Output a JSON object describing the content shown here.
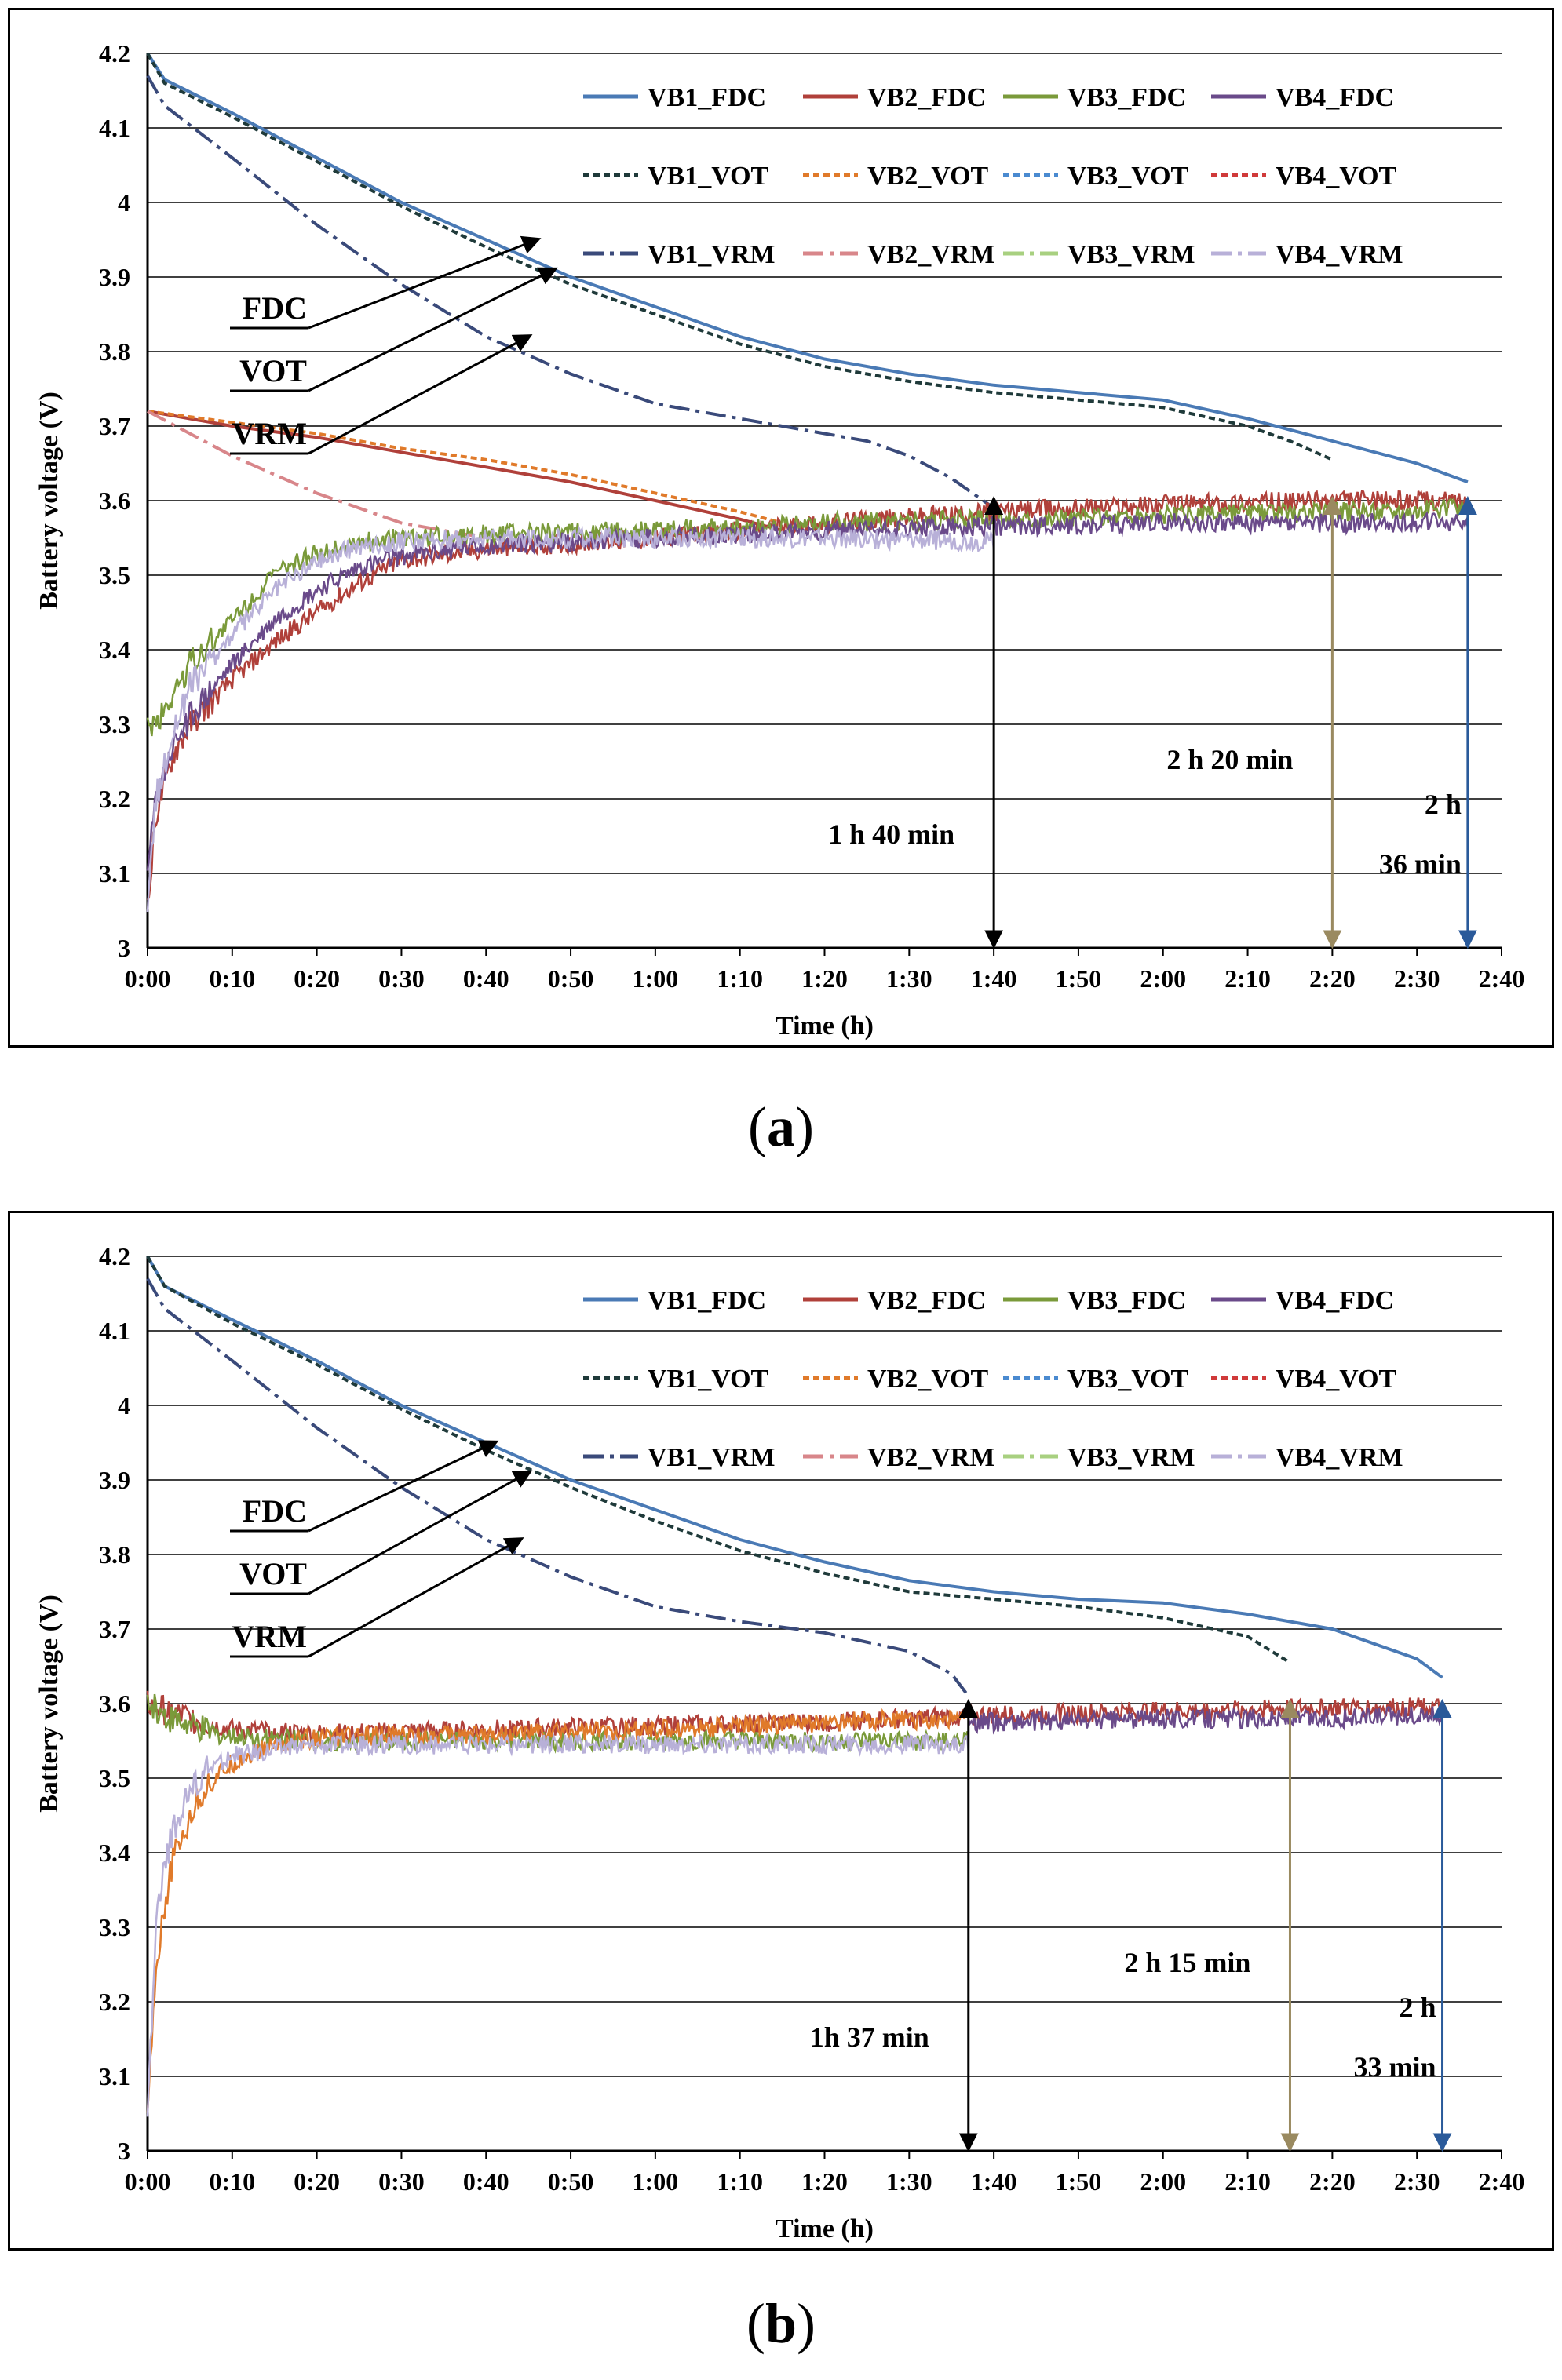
{
  "figure": {
    "captions": [
      "(a)",
      "(b)"
    ],
    "caption_parts": [
      [
        "(",
        "a",
        ")"
      ],
      [
        "(",
        "b",
        ")"
      ]
    ]
  },
  "colors": {
    "VB1_FDC": "#4a7ab5",
    "VB2_FDC": "#b0403a",
    "VB3_FDC": "#7a9a3a",
    "VB4_FDC": "#6a4a8a",
    "VB1_VOT": "#1f3a3a",
    "VB2_VOT": "#e07a2a",
    "VB3_VOT": "#4a8ad0",
    "VB4_VOT": "#d03a3a",
    "VB1_VRM": "#3a4a7a",
    "VB2_VRM": "#d8868a",
    "VB3_VRM": "#a8d080",
    "VB4_VRM": "#b8b0d8",
    "arrow_black": "#000000",
    "arrow_khaki": "#9a8a60",
    "arrow_blue": "#2a5a9a"
  },
  "chart_data": [
    {
      "id": "a",
      "type": "line",
      "title": "",
      "xlabel": "Time (h)",
      "ylabel": "Battery voltage (V)",
      "xlim": [
        0,
        160
      ],
      "ylim": [
        3,
        4.2
      ],
      "grid": true,
      "x_ticks": [
        "0:00",
        "0:10",
        "0:20",
        "0:30",
        "0:40",
        "0:50",
        "1:00",
        "1:10",
        "1:20",
        "1:30",
        "1:40",
        "1:50",
        "2:00",
        "2:10",
        "2:20",
        "2:30",
        "2:40"
      ],
      "y_ticks": [
        "3",
        "3.1",
        "3.2",
        "3.3",
        "3.4",
        "3.5",
        "3.6",
        "3.7",
        "3.8",
        "3.9",
        "4",
        "4.1",
        "4.2"
      ],
      "legend": [
        "VB1_FDC",
        "VB2_FDC",
        "VB3_FDC",
        "VB4_FDC",
        "VB1_VOT",
        "VB2_VOT",
        "VB3_VOT",
        "VB4_VOT",
        "VB1_VRM",
        "VB2_VRM",
        "VB3_VRM",
        "VB4_VRM"
      ],
      "legend_position": "top-right",
      "series": [
        {
          "name": "VB1_FDC",
          "style": "solid",
          "x": [
            0,
            2,
            10,
            20,
            30,
            40,
            50,
            60,
            70,
            80,
            90,
            100,
            110,
            120,
            130,
            140,
            150,
            156
          ],
          "y": [
            4.2,
            4.165,
            4.12,
            4.06,
            4.0,
            3.95,
            3.9,
            3.86,
            3.82,
            3.79,
            3.77,
            3.755,
            3.745,
            3.735,
            3.71,
            3.68,
            3.65,
            3.625
          ]
        },
        {
          "name": "VB1_VOT",
          "style": "dashed",
          "x": [
            0,
            2,
            10,
            20,
            30,
            40,
            50,
            60,
            70,
            80,
            90,
            100,
            110,
            120,
            130,
            135,
            140
          ],
          "y": [
            4.2,
            4.16,
            4.115,
            4.055,
            3.995,
            3.94,
            3.89,
            3.85,
            3.81,
            3.78,
            3.76,
            3.745,
            3.735,
            3.725,
            3.7,
            3.68,
            3.655
          ]
        },
        {
          "name": "VB1_VRM",
          "style": "dashdot",
          "x": [
            0,
            2,
            10,
            20,
            30,
            40,
            50,
            60,
            70,
            80,
            85,
            90,
            95,
            100
          ],
          "y": [
            4.17,
            4.13,
            4.06,
            3.97,
            3.89,
            3.82,
            3.77,
            3.73,
            3.71,
            3.69,
            3.68,
            3.66,
            3.63,
            3.59
          ]
        },
        {
          "name": "VB2_FDC",
          "style": "solid",
          "x": [
            0,
            10,
            20,
            30,
            40,
            50,
            60,
            70,
            75
          ],
          "y": [
            3.72,
            3.7,
            3.685,
            3.665,
            3.645,
            3.625,
            3.6,
            3.575,
            3.56
          ]
        },
        {
          "name": "VB2_VOT",
          "style": "dashed",
          "x": [
            0,
            10,
            20,
            30,
            40,
            50,
            60,
            70,
            75
          ],
          "y": [
            3.72,
            3.705,
            3.69,
            3.67,
            3.655,
            3.635,
            3.61,
            3.585,
            3.57
          ]
        },
        {
          "name": "VB2_VRM",
          "style": "dashdot",
          "x": [
            0,
            10,
            20,
            30,
            40
          ],
          "y": [
            3.72,
            3.66,
            3.61,
            3.57,
            3.55
          ]
        },
        {
          "name": "VB2_FDC rise",
          "legend": "VB2_FDC",
          "style": "noisy",
          "x": [
            0,
            1,
            3,
            5,
            10,
            15,
            20,
            25,
            30,
            40,
            60,
            80,
            100,
            120,
            140,
            156
          ],
          "y": [
            3.05,
            3.18,
            3.26,
            3.3,
            3.36,
            3.41,
            3.45,
            3.49,
            3.52,
            3.535,
            3.55,
            3.57,
            3.585,
            3.595,
            3.6,
            3.6
          ]
        },
        {
          "name": "VB3_FDC rise",
          "legend": "VB3_FDC",
          "style": "noisy",
          "x": [
            0,
            1,
            3,
            5,
            10,
            15,
            20,
            25,
            30,
            40,
            60,
            80,
            100,
            120,
            140,
            156
          ],
          "y": [
            3.3,
            3.3,
            3.34,
            3.38,
            3.44,
            3.5,
            3.53,
            3.545,
            3.55,
            3.555,
            3.56,
            3.57,
            3.575,
            3.58,
            3.585,
            3.59
          ]
        },
        {
          "name": "VB4_FDC rise",
          "legend": "VB4_FDC",
          "style": "noisy",
          "x": [
            0,
            1,
            3,
            5,
            10,
            15,
            20,
            25,
            30,
            40,
            60,
            80,
            100,
            120,
            140,
            156
          ],
          "y": [
            3.1,
            3.2,
            3.27,
            3.31,
            3.38,
            3.44,
            3.48,
            3.51,
            3.525,
            3.54,
            3.55,
            3.56,
            3.565,
            3.57,
            3.57,
            3.57
          ]
        },
        {
          "name": "VB4_VRM rise",
          "legend": "VB4_VRM",
          "style": "noisy",
          "x": [
            0,
            1,
            3,
            5,
            10,
            15,
            20,
            25,
            30,
            40,
            60,
            80,
            100
          ],
          "y": [
            3.05,
            3.2,
            3.29,
            3.35,
            3.42,
            3.48,
            3.52,
            3.54,
            3.545,
            3.55,
            3.55,
            3.55,
            3.545
          ]
        }
      ],
      "annotations": [
        {
          "text": "FDC",
          "arrow_target": [
            46,
            3.95
          ]
        },
        {
          "text": "VOT",
          "arrow_target": [
            48,
            3.91
          ]
        },
        {
          "text": "VRM",
          "arrow_target": [
            45,
            3.82
          ]
        },
        {
          "text": "1 h 40 min",
          "arrow_x": 100,
          "arrow_color": "arrow_black"
        },
        {
          "text": "2 h 20 min",
          "arrow_x": 140,
          "arrow_color": "arrow_khaki"
        },
        {
          "text": "2 h",
          "text2": "36 min",
          "arrow_x": 156,
          "arrow_color": "arrow_blue"
        }
      ]
    },
    {
      "id": "b",
      "type": "line",
      "title": "",
      "xlabel": "Time (h)",
      "ylabel": "Battery voltage (V)",
      "xlim": [
        0,
        160
      ],
      "ylim": [
        3,
        4.2
      ],
      "grid": true,
      "x_ticks": [
        "0:00",
        "0:10",
        "0:20",
        "0:30",
        "0:40",
        "0:50",
        "1:00",
        "1:10",
        "1:20",
        "1:30",
        "1:40",
        "1:50",
        "2:00",
        "2:10",
        "2:20",
        "2:30",
        "2:40"
      ],
      "y_ticks": [
        "3",
        "3.1",
        "3.2",
        "3.3",
        "3.4",
        "3.5",
        "3.6",
        "3.7",
        "3.8",
        "3.9",
        "4",
        "4.1",
        "4.2"
      ],
      "legend": [
        "VB1_FDC",
        "VB2_FDC",
        "VB3_FDC",
        "VB4_FDC",
        "VB1_VOT",
        "VB2_VOT",
        "VB3_VOT",
        "VB4_VOT",
        "VB1_VRM",
        "VB2_VRM",
        "VB3_VRM",
        "VB4_VRM"
      ],
      "legend_position": "top-right",
      "series": [
        {
          "name": "VB1_FDC",
          "style": "solid",
          "x": [
            0,
            2,
            10,
            20,
            30,
            40,
            50,
            60,
            70,
            80,
            90,
            100,
            110,
            120,
            130,
            140,
            150,
            153
          ],
          "y": [
            4.2,
            4.16,
            4.115,
            4.06,
            4.0,
            3.95,
            3.9,
            3.86,
            3.82,
            3.79,
            3.765,
            3.75,
            3.74,
            3.735,
            3.72,
            3.7,
            3.66,
            3.635
          ]
        },
        {
          "name": "VB1_VOT",
          "style": "dashed",
          "x": [
            0,
            2,
            10,
            20,
            30,
            40,
            50,
            60,
            70,
            80,
            90,
            100,
            110,
            120,
            130,
            135
          ],
          "y": [
            4.2,
            4.16,
            4.11,
            4.055,
            3.995,
            3.94,
            3.89,
            3.845,
            3.805,
            3.775,
            3.75,
            3.74,
            3.73,
            3.715,
            3.69,
            3.655
          ]
        },
        {
          "name": "VB1_VRM",
          "style": "dashdot",
          "x": [
            0,
            2,
            10,
            20,
            30,
            40,
            50,
            60,
            70,
            80,
            90,
            95,
            97
          ],
          "y": [
            4.17,
            4.13,
            4.06,
            3.97,
            3.89,
            3.82,
            3.77,
            3.73,
            3.71,
            3.695,
            3.67,
            3.64,
            3.61
          ]
        },
        {
          "name": "VB2_FDC",
          "style": "noisy",
          "x": [
            0,
            2,
            5,
            8,
            10,
            20,
            40,
            60,
            80,
            100,
            120,
            140,
            153
          ],
          "y": [
            3.6,
            3.59,
            3.58,
            3.57,
            3.565,
            3.56,
            3.565,
            3.57,
            3.575,
            3.585,
            3.59,
            3.595,
            3.595
          ]
        },
        {
          "name": "VB3_FDC",
          "style": "noisy",
          "x": [
            0,
            2,
            5,
            8,
            10,
            20,
            40,
            60,
            80,
            97
          ],
          "y": [
            3.6,
            3.585,
            3.57,
            3.56,
            3.555,
            3.55,
            3.55,
            3.55,
            3.55,
            3.55
          ]
        },
        {
          "name": "VB4_FDC",
          "style": "noisy",
          "x": [
            97,
            100,
            120,
            140,
            153
          ],
          "y": [
            3.575,
            3.575,
            3.58,
            3.58,
            3.585
          ]
        },
        {
          "name": "VB2_VOT rise",
          "legend": "VB2_VOT",
          "style": "noisy",
          "x": [
            0,
            1,
            2,
            3,
            5,
            7,
            10,
            15,
            20,
            40,
            60,
            80,
            97
          ],
          "y": [
            3.05,
            3.25,
            3.33,
            3.39,
            3.45,
            3.49,
            3.52,
            3.545,
            3.555,
            3.56,
            3.565,
            3.575,
            3.58
          ]
        },
        {
          "name": "VB4_VRM rise",
          "legend": "VB4_VRM",
          "style": "noisy",
          "x": [
            0,
            1,
            2,
            3,
            5,
            7,
            10,
            15,
            20,
            40,
            60,
            80,
            97
          ],
          "y": [
            3.05,
            3.3,
            3.38,
            3.43,
            3.48,
            3.51,
            3.53,
            3.54,
            3.545,
            3.545,
            3.545,
            3.545,
            3.545
          ]
        }
      ],
      "annotations": [
        {
          "text": "FDC",
          "arrow_target": [
            41,
            3.95
          ]
        },
        {
          "text": "VOT",
          "arrow_target": [
            45,
            3.91
          ]
        },
        {
          "text": "VRM",
          "arrow_target": [
            44,
            3.82
          ]
        },
        {
          "text": "1h 37 min",
          "arrow_x": 97,
          "arrow_color": "arrow_black"
        },
        {
          "text": "2 h 15 min",
          "arrow_x": 135,
          "arrow_color": "arrow_khaki"
        },
        {
          "text": "2 h",
          "text2": "33 min",
          "arrow_x": 153,
          "arrow_color": "arrow_blue"
        }
      ]
    }
  ]
}
